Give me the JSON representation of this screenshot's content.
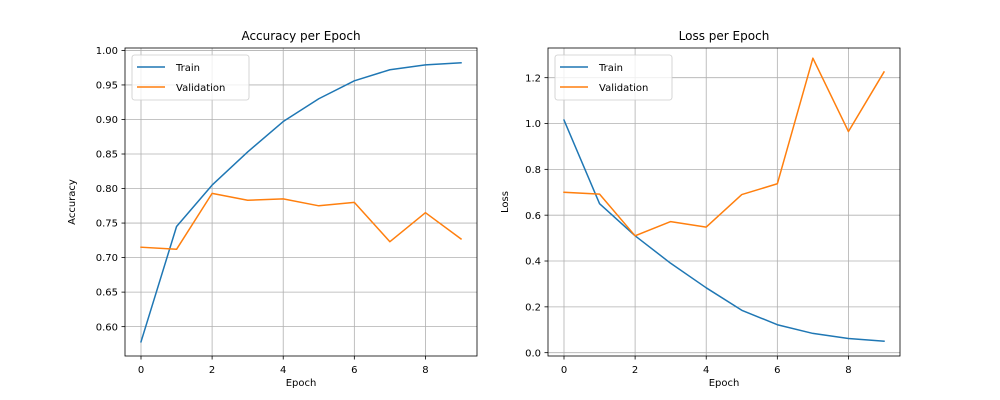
{
  "chart_data": [
    {
      "type": "line",
      "title": "Accuracy per Epoch",
      "xlabel": "Epoch",
      "ylabel": "Accuracy",
      "xlim": [
        -0.45,
        9.45
      ],
      "ylim": [
        0.5575,
        1.0035
      ],
      "xticks": [
        0,
        2,
        4,
        6,
        8
      ],
      "xtick_labels": [
        "0",
        "2",
        "4",
        "6",
        "8"
      ],
      "yticks": [
        0.6,
        0.65,
        0.7,
        0.75,
        0.8,
        0.85,
        0.9,
        0.95,
        1.0
      ],
      "ytick_labels": [
        "0.60",
        "0.65",
        "0.70",
        "0.75",
        "0.80",
        "0.85",
        "0.90",
        "0.95",
        "1.00"
      ],
      "grid": true,
      "legend": "upper-left",
      "x": [
        0,
        1,
        2,
        3,
        4,
        5,
        6,
        7,
        8,
        9
      ],
      "series": [
        {
          "name": "Train",
          "color": "#1f77b4",
          "values": [
            0.578,
            0.745,
            0.805,
            0.853,
            0.897,
            0.93,
            0.956,
            0.972,
            0.979,
            0.982
          ]
        },
        {
          "name": "Validation",
          "color": "#ff7f0e",
          "values": [
            0.715,
            0.712,
            0.793,
            0.783,
            0.785,
            0.775,
            0.78,
            0.723,
            0.765,
            0.727
          ]
        }
      ]
    },
    {
      "type": "line",
      "title": "Loss per Epoch",
      "xlabel": "Epoch",
      "ylabel": "Loss",
      "xlim": [
        -0.45,
        9.45
      ],
      "ylim": [
        -0.0145,
        1.3295
      ],
      "xticks": [
        0,
        2,
        4,
        6,
        8
      ],
      "xtick_labels": [
        "0",
        "2",
        "4",
        "6",
        "8"
      ],
      "yticks": [
        0.0,
        0.2,
        0.4,
        0.6,
        0.8,
        1.0,
        1.2
      ],
      "ytick_labels": [
        "0.0",
        "0.2",
        "0.4",
        "0.6",
        "0.8",
        "1.0",
        "1.2"
      ],
      "grid": true,
      "legend": "upper-left",
      "x": [
        0,
        1,
        2,
        3,
        4,
        5,
        6,
        7,
        8,
        9
      ],
      "series": [
        {
          "name": "Train",
          "color": "#1f77b4",
          "values": [
            1.015,
            0.65,
            0.51,
            0.39,
            0.283,
            0.185,
            0.122,
            0.084,
            0.062,
            0.05
          ]
        },
        {
          "name": "Validation",
          "color": "#ff7f0e",
          "values": [
            0.7,
            0.692,
            0.51,
            0.572,
            0.548,
            0.69,
            0.737,
            1.285,
            0.965,
            1.225
          ]
        }
      ]
    }
  ]
}
